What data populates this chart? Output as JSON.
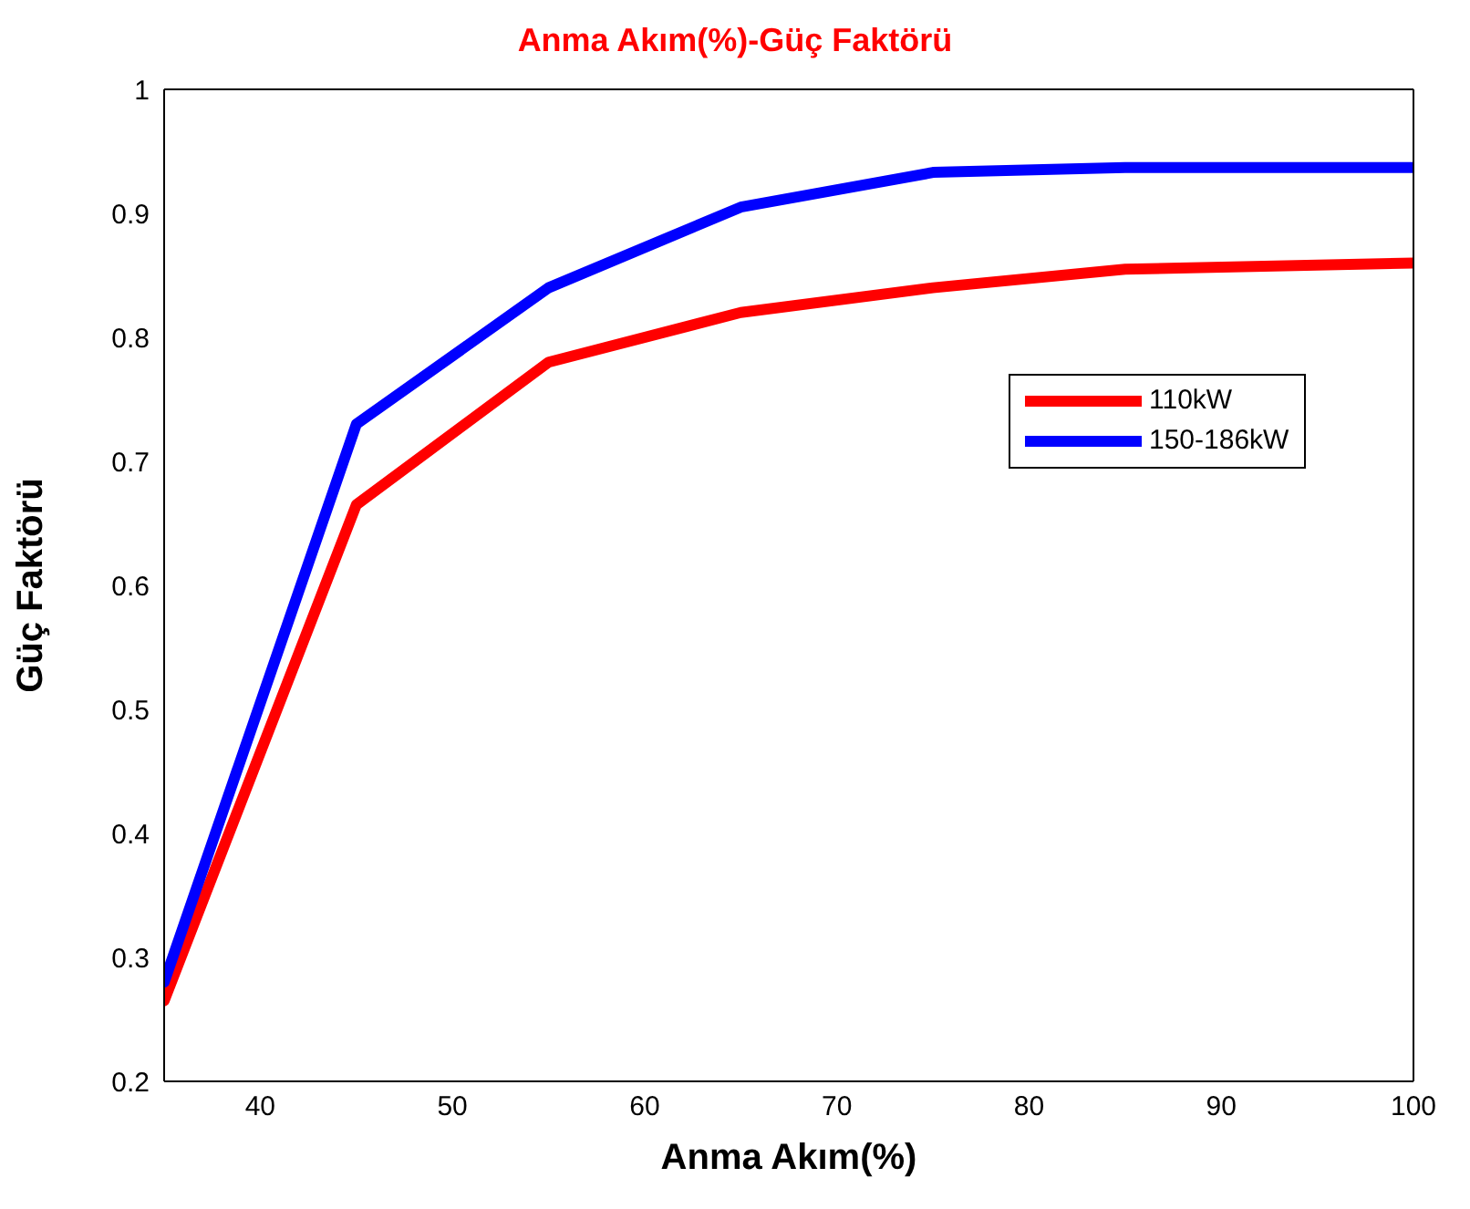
{
  "chart_data": {
    "type": "line",
    "title": "Anma Akım(%)-Güç Faktörü",
    "xlabel": "Anma Akım(%)",
    "ylabel": "Güç Faktörü",
    "x": [
      35,
      45,
      55,
      65,
      75,
      85,
      100
    ],
    "series": [
      {
        "name": "110kW",
        "color": "#ff0000",
        "values": [
          0.265,
          0.665,
          0.78,
          0.82,
          0.84,
          0.855,
          0.86
        ]
      },
      {
        "name": "150-186kW",
        "color": "#0000ff",
        "values": [
          0.28,
          0.73,
          0.84,
          0.905,
          0.933,
          0.937,
          0.937
        ]
      }
    ],
    "xlim": [
      35,
      100
    ],
    "xticks": [
      40,
      50,
      60,
      70,
      80,
      90,
      100
    ],
    "ylim": [
      0.2,
      1
    ],
    "yticks": [
      0.2,
      0.3,
      0.4,
      0.5,
      0.6,
      0.7,
      0.8,
      0.9,
      1
    ],
    "grid": false,
    "legend": "right",
    "marker": "none",
    "line_style": "solid"
  }
}
